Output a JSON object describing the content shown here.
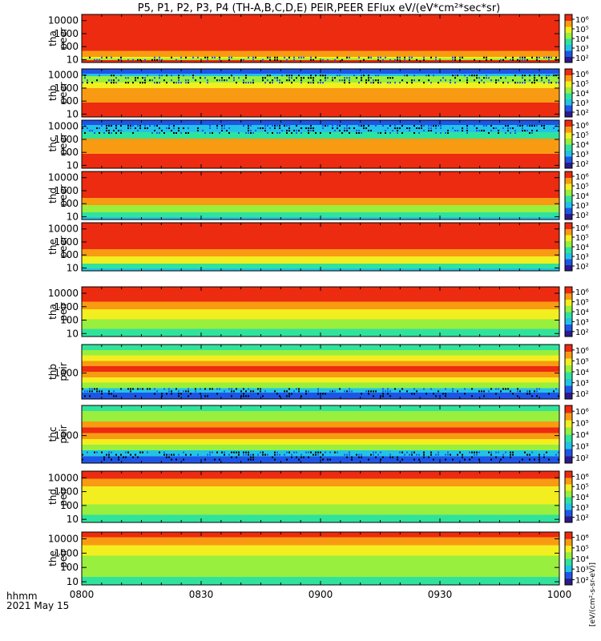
{
  "title": "P5, P1, P2, P3, P4 (TH-A,B,C,D,E) PEIR,PEER EFlux eV/(eV*cm²*sec*sr)",
  "footer": {
    "time_format": "hhmm",
    "date": "2021 May 15"
  },
  "colorbar_unit_label": "[eV/(cm²-s-sr-eV)]",
  "chart_data": {
    "type": "heatmap",
    "x": {
      "label": "hhmm",
      "ticks": [
        "0800",
        "0830",
        "0900",
        "0930",
        "1000"
      ],
      "range": [
        "08:00",
        "10:00"
      ]
    },
    "y_scale": "log",
    "colorbar_scale": "log",
    "colormap": [
      "#2b1a8c",
      "#1f55e6",
      "#22c3e6",
      "#2fe39d",
      "#98ef3d",
      "#f2ee1f",
      "#f99b12",
      "#ec2b10"
    ],
    "panels": [
      {
        "name": "tha peer",
        "label": [
          "tha",
          "peer"
        ],
        "yticks": [
          "10",
          "100",
          "1000",
          "10000"
        ],
        "ylim": [
          6,
          30000
        ],
        "colorbar_ticks": [
          "10²",
          "10³",
          "10⁴",
          "10⁵",
          "10⁶"
        ],
        "bands": [
          [
            0,
            0.05,
            7
          ],
          [
            0.05,
            0.08,
            4
          ],
          [
            0.08,
            0.12,
            5
          ],
          [
            0.12,
            0.24,
            6
          ],
          [
            0.24,
            0.55,
            6.5
          ],
          [
            0.55,
            0.85,
            7
          ],
          [
            0.85,
            1.0,
            7
          ]
        ],
        "noise_band": [
          0.06,
          0.12
        ]
      },
      {
        "name": "thb peer",
        "label": [
          "thb",
          "peer"
        ],
        "yticks": [
          "10",
          "100",
          "1000",
          "10000"
        ],
        "ylim": [
          6,
          30000
        ],
        "colorbar_ticks": [
          "10²",
          "10³",
          "10⁴",
          "10⁵",
          "10⁶"
        ],
        "bands": [
          [
            0,
            0.12,
            7
          ],
          [
            0.12,
            0.3,
            6.5
          ],
          [
            0.3,
            0.45,
            6
          ],
          [
            0.45,
            0.6,
            5.5
          ],
          [
            0.6,
            0.72,
            4.5
          ],
          [
            0.72,
            0.85,
            3.5
          ],
          [
            0.85,
            0.9,
            2
          ],
          [
            0.9,
            1.0,
            1
          ]
        ],
        "noise_band": [
          0.7,
          0.88
        ]
      },
      {
        "name": "thc peer",
        "label": [
          "thc",
          "peer"
        ],
        "yticks": [
          "10",
          "100",
          "1000",
          "10000"
        ],
        "ylim": [
          6,
          30000
        ],
        "colorbar_ticks": [
          "10²",
          "10³",
          "10⁴",
          "10⁵",
          "10⁶"
        ],
        "bands": [
          [
            0,
            0.1,
            7
          ],
          [
            0.1,
            0.3,
            6.8
          ],
          [
            0.3,
            0.5,
            6
          ],
          [
            0.5,
            0.62,
            5.5
          ],
          [
            0.62,
            0.75,
            3
          ],
          [
            0.75,
            0.9,
            2
          ],
          [
            0.9,
            1.0,
            1
          ]
        ],
        "noise_band": [
          0.7,
          0.9
        ]
      },
      {
        "name": "thd peer",
        "label": [
          "thd",
          "peer"
        ],
        "yticks": [
          "10",
          "100",
          "1000",
          "10000"
        ],
        "ylim": [
          6,
          30000
        ],
        "colorbar_ticks": [
          "10²",
          "10³",
          "10⁴",
          "10⁵",
          "10⁶"
        ],
        "bands": [
          [
            0,
            0.05,
            2
          ],
          [
            0.05,
            0.15,
            3
          ],
          [
            0.15,
            0.3,
            4
          ],
          [
            0.3,
            0.45,
            5.5
          ],
          [
            0.45,
            0.6,
            6.5
          ],
          [
            0.6,
            1.0,
            7
          ]
        ],
        "noise_band": null
      },
      {
        "name": "the peer",
        "label": [
          "the",
          "peer"
        ],
        "yticks": [
          "10",
          "100",
          "1000",
          "10000"
        ],
        "ylim": [
          6,
          30000
        ],
        "colorbar_ticks": [
          "10²",
          "10³",
          "10⁴",
          "10⁵",
          "10⁶"
        ],
        "bands": [
          [
            0,
            0.05,
            2
          ],
          [
            0.05,
            0.15,
            3
          ],
          [
            0.15,
            0.3,
            4.5
          ],
          [
            0.3,
            0.45,
            5.5
          ],
          [
            0.45,
            0.6,
            6.5
          ],
          [
            0.6,
            1.0,
            7
          ]
        ],
        "noise_band": null
      },
      {
        "name": "tha peir",
        "label": [
          "tha",
          "peir"
        ],
        "yticks": [
          "10",
          "100",
          "1000",
          "10000"
        ],
        "ylim": [
          6,
          30000
        ],
        "colorbar_ticks": [
          "10²",
          "10³",
          "10⁴",
          "10⁵",
          "10⁶"
        ],
        "bands": [
          [
            0,
            0.15,
            3
          ],
          [
            0.15,
            0.35,
            3.5
          ],
          [
            0.35,
            0.55,
            4.5
          ],
          [
            0.55,
            0.7,
            5.5
          ],
          [
            0.7,
            0.85,
            6.5
          ],
          [
            0.85,
            1.0,
            7
          ]
        ],
        "noise_band": null
      },
      {
        "name": "thb peir",
        "label": [
          "thb",
          "peir"
        ],
        "yticks": [
          "1000"
        ],
        "ylim": [
          150,
          8000
        ],
        "colorbar_ticks": [
          "10²",
          "10³",
          "10⁴",
          "10⁵",
          "10⁶"
        ],
        "bands": [
          [
            0,
            0.12,
            0.5
          ],
          [
            0.12,
            0.2,
            2
          ],
          [
            0.2,
            0.3,
            3.5
          ],
          [
            0.3,
            0.4,
            4.5
          ],
          [
            0.4,
            0.5,
            6
          ],
          [
            0.5,
            0.6,
            7
          ],
          [
            0.6,
            0.7,
            6
          ],
          [
            0.7,
            0.8,
            4.5
          ],
          [
            0.8,
            0.9,
            3.5
          ],
          [
            0.9,
            1.0,
            3
          ]
        ],
        "noise_band": [
          0.05,
          0.2
        ]
      },
      {
        "name": "thc peir",
        "label": [
          "thc",
          "peir"
        ],
        "yticks": [
          "1000"
        ],
        "ylim": [
          150,
          8000
        ],
        "colorbar_ticks": [
          "10²",
          "10³",
          "10⁴",
          "10⁵",
          "10⁶"
        ],
        "bands": [
          [
            0,
            0.12,
            0.5
          ],
          [
            0.12,
            0.22,
            2
          ],
          [
            0.22,
            0.32,
            3.5
          ],
          [
            0.32,
            0.42,
            4.5
          ],
          [
            0.42,
            0.52,
            6
          ],
          [
            0.52,
            0.62,
            7
          ],
          [
            0.62,
            0.72,
            5.5
          ],
          [
            0.72,
            0.82,
            4
          ],
          [
            0.82,
            0.9,
            3.5
          ],
          [
            0.9,
            1.0,
            3
          ]
        ],
        "noise_band": [
          0.05,
          0.2
        ]
      },
      {
        "name": "thd peir",
        "label": [
          "thd",
          "peir"
        ],
        "yticks": [
          "10",
          "100",
          "1000",
          "10000"
        ],
        "ylim": [
          6,
          30000
        ],
        "colorbar_ticks": [
          "10²",
          "10³",
          "10⁴",
          "10⁵",
          "10⁶"
        ],
        "bands": [
          [
            0,
            0.15,
            3
          ],
          [
            0.15,
            0.35,
            3.5
          ],
          [
            0.35,
            0.55,
            4.5
          ],
          [
            0.55,
            0.7,
            5
          ],
          [
            0.7,
            0.85,
            6
          ],
          [
            0.85,
            1.0,
            7
          ]
        ],
        "noise_band": null
      },
      {
        "name": "the peir",
        "label": [
          "the",
          "peir"
        ],
        "yticks": [
          "10",
          "100",
          "1000",
          "10000"
        ],
        "ylim": [
          6,
          30000
        ],
        "colorbar_ticks": [
          "10²",
          "10³",
          "10⁴",
          "10⁵",
          "10⁶"
        ],
        "bands": [
          [
            0,
            0.15,
            3
          ],
          [
            0.15,
            0.35,
            3.5
          ],
          [
            0.35,
            0.55,
            4
          ],
          [
            0.55,
            0.75,
            4.5
          ],
          [
            0.75,
            0.9,
            5.5
          ],
          [
            0.9,
            1.0,
            6.5
          ]
        ],
        "noise_band": null
      }
    ]
  }
}
